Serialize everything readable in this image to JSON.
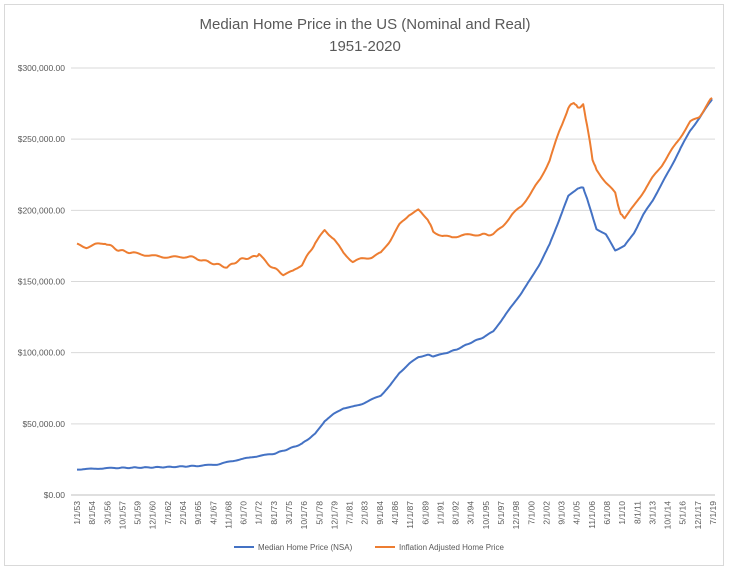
{
  "chart_data": {
    "type": "line",
    "title": "Median Home Price in the US (Nominal and Real)",
    "subtitle": "1951-2020",
    "xlabel": "",
    "ylabel": "",
    "ylim": [
      0,
      300000
    ],
    "y_ticks": [
      "$0.00",
      "$50,000.00",
      "$100,000.00",
      "$150,000.00",
      "$200,000.00",
      "$250,000.00",
      "$300,000.00"
    ],
    "x_tick_labels": [
      "1/1/53",
      "8/1/54",
      "3/1/56",
      "10/1/57",
      "5/1/59",
      "12/1/60",
      "7/1/62",
      "2/1/64",
      "9/1/65",
      "4/1/67",
      "11/1/68",
      "6/1/70",
      "1/1/72",
      "8/1/73",
      "3/1/75",
      "10/1/76",
      "5/1/78",
      "12/1/79",
      "7/1/81",
      "2/1/83",
      "9/1/84",
      "4/1/86",
      "11/1/87",
      "6/1/89",
      "1/1/91",
      "8/1/92",
      "3/1/94",
      "10/1/95",
      "5/1/97",
      "12/1/98",
      "7/1/00",
      "2/1/02",
      "9/1/03",
      "4/1/05",
      "11/1/06",
      "6/1/08",
      "1/1/10",
      "8/1/11",
      "3/1/13",
      "10/1/14",
      "5/1/16",
      "12/1/17",
      "7/1/19"
    ],
    "grid": true,
    "legend_position": "bottom",
    "series": [
      {
        "name": "Median Home Price (NSA)",
        "color": "#4472c4",
        "points": [
          [
            "1953-01",
            18000
          ],
          [
            "1955-01",
            18500
          ],
          [
            "1957-01",
            19000
          ],
          [
            "1960-01",
            19300
          ],
          [
            "1963-01",
            19700
          ],
          [
            "1966-01",
            20500
          ],
          [
            "1968-01",
            21500
          ],
          [
            "1970-01",
            24500
          ],
          [
            "1972-01",
            27000
          ],
          [
            "1974-01",
            29000
          ],
          [
            "1975-06",
            32000
          ],
          [
            "1977-01",
            36000
          ],
          [
            "1978-06",
            43000
          ],
          [
            "1979-06",
            52000
          ],
          [
            "1980-06",
            57000
          ],
          [
            "1981-06",
            61000
          ],
          [
            "1982-06",
            62000
          ],
          [
            "1983-06",
            64000
          ],
          [
            "1984-06",
            67000
          ],
          [
            "1985-06",
            70000
          ],
          [
            "1986-06",
            77000
          ],
          [
            "1987-06",
            86000
          ],
          [
            "1988-06",
            92000
          ],
          [
            "1989-06",
            97000
          ],
          [
            "1990-06",
            98500
          ],
          [
            "1991-01",
            97500
          ],
          [
            "1992-01",
            99000
          ],
          [
            "1993-06",
            102000
          ],
          [
            "1995-01",
            107000
          ],
          [
            "1996-06",
            111000
          ],
          [
            "1997-06",
            115000
          ],
          [
            "1998-06",
            124000
          ],
          [
            "1999-06",
            133000
          ],
          [
            "2000-06",
            142000
          ],
          [
            "2001-06",
            152000
          ],
          [
            "2002-06",
            163000
          ],
          [
            "2003-06",
            176000
          ],
          [
            "2004-06",
            193000
          ],
          [
            "2005-06",
            210000
          ],
          [
            "2006-06",
            215500
          ],
          [
            "2007-01",
            216000
          ],
          [
            "2007-06",
            208000
          ],
          [
            "2008-06",
            187000
          ],
          [
            "2009-06",
            183000
          ],
          [
            "2010-06",
            172000
          ],
          [
            "2011-06",
            175000
          ],
          [
            "2012-06",
            184000
          ],
          [
            "2013-06",
            197000
          ],
          [
            "2014-06",
            207000
          ],
          [
            "2015-06",
            219000
          ],
          [
            "2016-06",
            231000
          ],
          [
            "2017-06",
            244000
          ],
          [
            "2018-06",
            256000
          ],
          [
            "2019-06",
            265000
          ],
          [
            "2020-06",
            275000
          ],
          [
            "2020-10",
            278000
          ]
        ]
      },
      {
        "name": "Inflation Adjusted Home Price",
        "color": "#ed7d31",
        "points": [
          [
            "1953-01",
            176000
          ],
          [
            "1954-01",
            174000
          ],
          [
            "1955-01",
            176000
          ],
          [
            "1956-01",
            177000
          ],
          [
            "1957-06",
            172000
          ],
          [
            "1959-01",
            170000
          ],
          [
            "1961-01",
            168000
          ],
          [
            "1963-01",
            167000
          ],
          [
            "1965-01",
            167500
          ],
          [
            "1967-06",
            163000
          ],
          [
            "1969-01",
            160000
          ],
          [
            "1970-06",
            165500
          ],
          [
            "1972-01",
            167500
          ],
          [
            "1972-06",
            169000
          ],
          [
            "1973-06",
            162000
          ],
          [
            "1975-01",
            155000
          ],
          [
            "1976-01",
            157000
          ],
          [
            "1977-01",
            162000
          ],
          [
            "1978-06",
            177000
          ],
          [
            "1979-06",
            186000
          ],
          [
            "1980-06",
            180000
          ],
          [
            "1981-06",
            170000
          ],
          [
            "1982-06",
            164000
          ],
          [
            "1983-06",
            166000
          ],
          [
            "1984-06",
            167000
          ],
          [
            "1985-06",
            170000
          ],
          [
            "1986-06",
            179000
          ],
          [
            "1987-06",
            190000
          ],
          [
            "1988-06",
            197000
          ],
          [
            "1989-06",
            200000
          ],
          [
            "1990-06",
            194000
          ],
          [
            "1991-01",
            185000
          ],
          [
            "1992-01",
            182000
          ],
          [
            "1993-01",
            181000
          ],
          [
            "1994-01",
            182500
          ],
          [
            "1996-01",
            183000
          ],
          [
            "1997-06",
            183000
          ],
          [
            "1998-06",
            189000
          ],
          [
            "1999-06",
            197000
          ],
          [
            "2000-06",
            203000
          ],
          [
            "2001-06",
            212000
          ],
          [
            "2002-06",
            222000
          ],
          [
            "2003-06",
            235000
          ],
          [
            "2004-06",
            255000
          ],
          [
            "2005-06",
            272000
          ],
          [
            "2006-01",
            276000
          ],
          [
            "2006-06",
            272000
          ],
          [
            "2007-01",
            274000
          ],
          [
            "2007-06",
            260000
          ],
          [
            "2008-01",
            236000
          ],
          [
            "2008-06",
            228000
          ],
          [
            "2009-06",
            220000
          ],
          [
            "2010-06",
            212000
          ],
          [
            "2011-01",
            197000
          ],
          [
            "2011-06",
            195000
          ],
          [
            "2012-06",
            203000
          ],
          [
            "2013-06",
            213000
          ],
          [
            "2014-06",
            223000
          ],
          [
            "2015-06",
            232000
          ],
          [
            "2016-06",
            242000
          ],
          [
            "2017-06",
            252000
          ],
          [
            "2018-06",
            262000
          ],
          [
            "2019-06",
            266000
          ],
          [
            "2020-06",
            276000
          ],
          [
            "2020-10",
            279000
          ]
        ]
      }
    ]
  }
}
